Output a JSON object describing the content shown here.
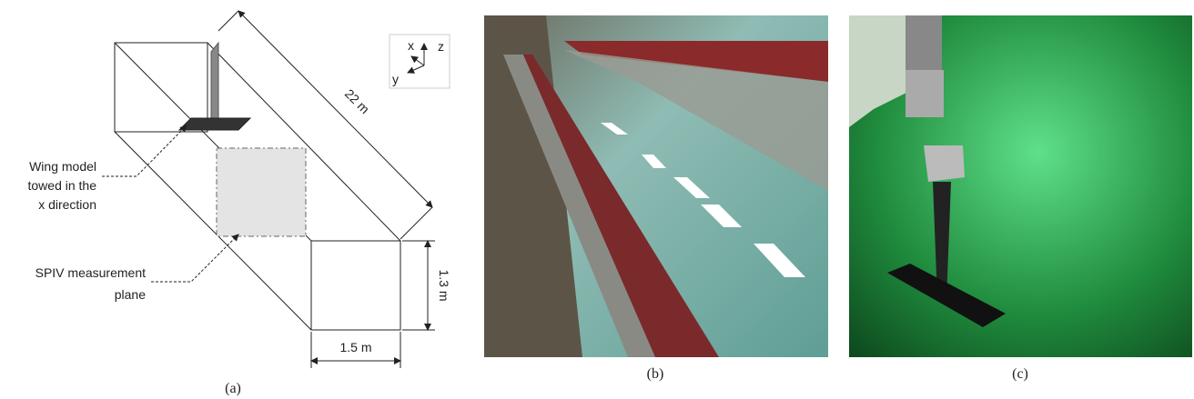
{
  "diagram": {
    "length": "22 m",
    "axes": [
      "x",
      "y",
      "z"
    ],
    "wing_label": [
      "Wing model",
      "towed in the",
      "x direction"
    ],
    "plane_label": [
      "SPIV measurement",
      "plane"
    ],
    "height": "1.3 m",
    "width": "1.5 m"
  },
  "captions": [
    "(a)",
    "(b)",
    "(c)"
  ]
}
